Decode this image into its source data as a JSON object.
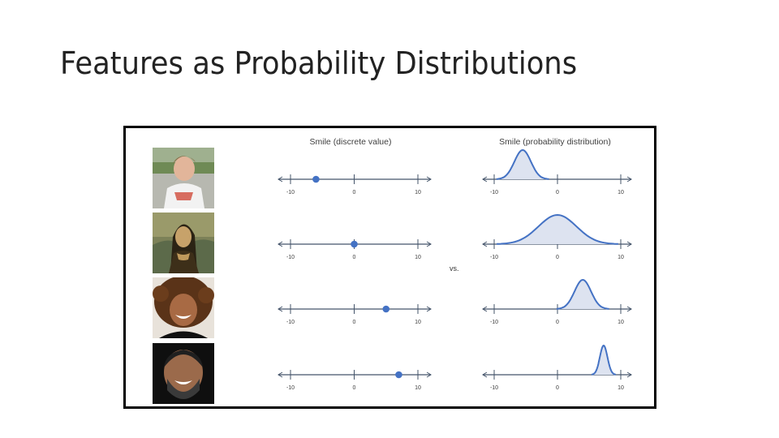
{
  "slide": {
    "title": "Features as Probability Distributions"
  },
  "figure": {
    "left_title": "Smile (discrete value)",
    "right_title": "Smile (probability distribution)",
    "vs_label": "vs.",
    "colors": {
      "accent": "#4472c4",
      "fill": "#dde3f0",
      "axis": "#44546a",
      "text": "#404040"
    },
    "rows": [
      {
        "photo": "boy-white-shirt-photo",
        "discrete_value": -6,
        "distribution": {
          "mean": -5.5,
          "spread": 1.3
        }
      },
      {
        "photo": "mona-lisa-portrait",
        "discrete_value": 0,
        "distribution": {
          "mean": 0,
          "spread": 3.0
        }
      },
      {
        "photo": "curly-hair-girl-photo",
        "discrete_value": 5,
        "distribution": {
          "mean": 4,
          "spread": 1.3
        }
      },
      {
        "photo": "laughing-man-photo",
        "discrete_value": 7,
        "distribution": {
          "mean": 7.3,
          "spread": 0.6
        }
      }
    ],
    "axis": {
      "min": -10,
      "max": 10,
      "tick_labels": [
        "-10",
        "0",
        "10"
      ]
    }
  }
}
